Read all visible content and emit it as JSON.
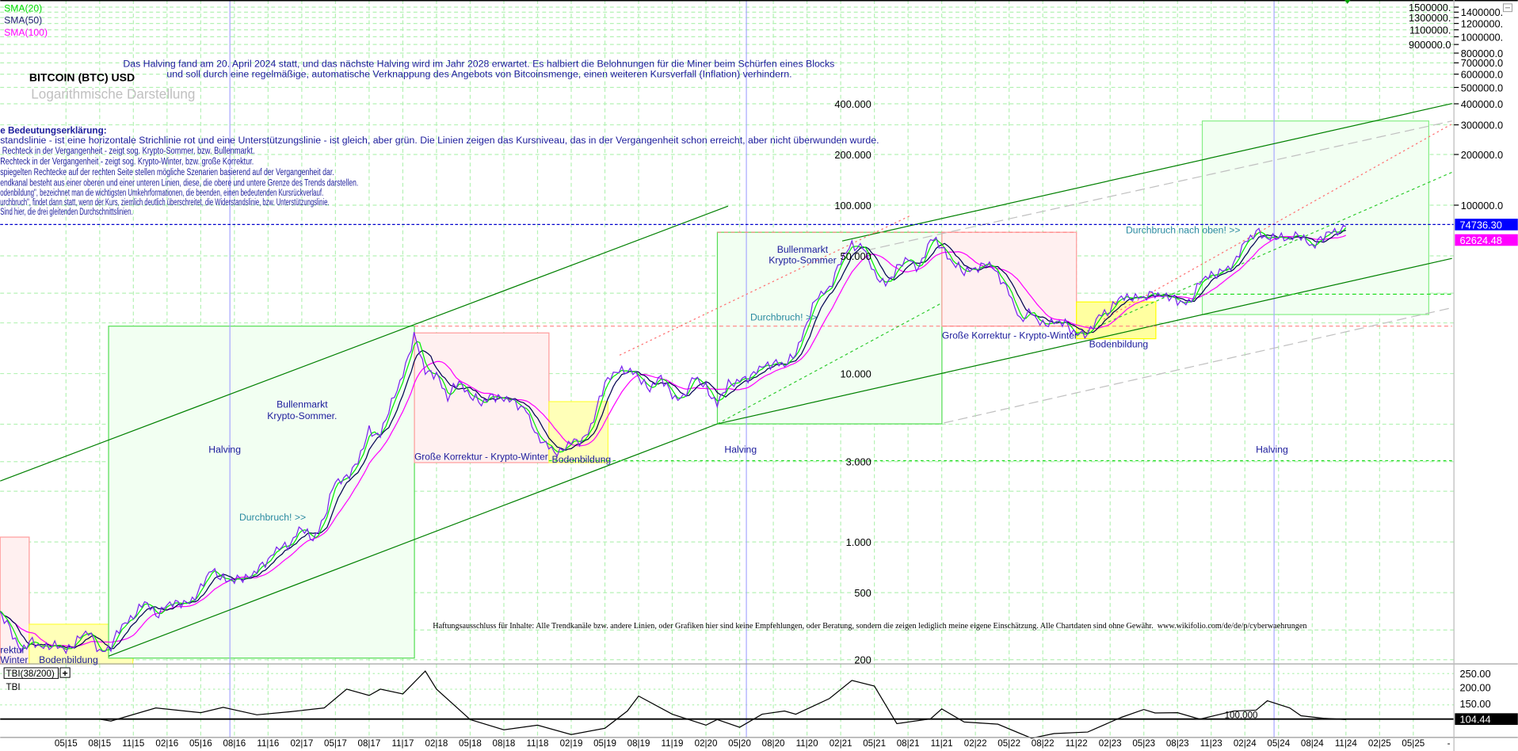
{
  "title": "BITCOIN (BTC) USD",
  "subtitle": "Logarithmische Darstellung",
  "legend": [
    {
      "label": "SMA(20)",
      "color": "#00dd00"
    },
    {
      "label": "SMA(50)",
      "color": "#202070"
    },
    {
      "label": "SMA(100)",
      "color": "#ff00ff"
    }
  ],
  "halving_note": [
    "Das Halving fand am 20. April 2024 statt, und das nächste Halving wird im Jahr 2028 erwartet. Es halbiert die Belohnungen für die Miner beim Schürfen eines Blocks",
    "und soll durch eine regelmäßige, automatische Verknappung des Angebots von Bitcoinsmenge, einen weiteren Kursverfall (Inflation) verhindern."
  ],
  "explanation": {
    "heading": "e Bedeutungserklärung:",
    "lines": [
      "standslinie - ist eine horizontale Strichlinie rot und eine Unterstützungslinie - ist gleich, aber grün. Die Linien zeigen das Kursniveau, das in der Vergangenheit schon erreicht, aber nicht überwunden wurde.",
      " Rechteck in der Vergangenheit - zeigt sog. Krypto-Sommer, bzw. Bullenmarkt.",
      "Rechteck in der Vergangenheit - zeigt sog. Krypto-Winter, bzw. große Korrektur.",
      "spiegelten Rechtecke auf der rechten Seite stellen mögliche Szenarien basierend auf der Vergangenheit dar.",
      "endkanal besteht aus einer oberen und einer unteren Linien, diese, die obere und untere Grenze des Trends darstellen.",
      "odenbildung\", bezeichnet man die wichtigsten Umkehrformationen, die beenden, einen bedeutenden Kursrückverlauf.",
      "urchbruch\", findet dann statt, wenn der Kurs, ziemlich deutlich überschreitet, die Widerstandslinie, bzw. Unterstützungslinie.",
      "Sind hier, die drei gleitenden Durchschnittslinien."
    ]
  },
  "annotations": {
    "halving": "Halving",
    "bull_1": "Bullenmarkt",
    "bull_2_dot": "Krypto-Sommer.",
    "bull_2": "Krypto-Sommer",
    "breakout": "Durchbruch! >>",
    "breakout_up": "Durchbruch nach oben! >>",
    "correction": "Große Korrektur - Krypto-Winter",
    "bottom": "Bodenbildung",
    "clip_1": "rektur",
    "clip_2": "Winter"
  },
  "disclaimer": "Haftungsausschluss für Inhalte: Alle Trendkanäle bzw. andere Linien, oder Grafiken hier sind keine Empfehlungen, oder Beratung, sondern die zeigen lediglich meine eigene Einschätzung. Alle Chartdaten sind ohne Gewähr.  www.wikifolio.com/de/de/p/cyberwaehrungen",
  "price_badges": {
    "last": "74736.30",
    "last_color": "#0000ff",
    "sma": "62624.48",
    "sma_color": "#ff00ff"
  },
  "indicator": {
    "name": "TBI(38/200)",
    "expand": "+",
    "label": "TBI",
    "level_label": "100.000",
    "value_badge": "104.44",
    "axis_labels": [
      "250.00",
      "200.00",
      "150.00"
    ]
  },
  "chart_data": {
    "type": "line",
    "yscale": "log",
    "price_axis_labels": [
      "1500000.",
      "1400000.",
      "1300000.",
      "1200000.",
      "1100000.",
      "1000000.",
      "900000.0",
      "800000.0",
      "700000.0",
      "600000.0",
      "500000.0",
      "400000.0",
      "300000.0",
      "200000.0",
      "100000.0"
    ],
    "inner_axis_labels": [
      "400.000",
      "200.000",
      "100.000",
      "50.000",
      "10.000",
      "3.000",
      "1.000",
      "500",
      "200"
    ],
    "x_ticks": [
      "05|15",
      "08|15",
      "11|15",
      "02|16",
      "05|16",
      "08|16",
      "11|16",
      "02|17",
      "05|17",
      "08|17",
      "11|17",
      "02|18",
      "05|18",
      "08|18",
      "11|18",
      "02|19",
      "05|19",
      "08|19",
      "11|19",
      "02|20",
      "05|20",
      "08|20",
      "11|20",
      "02|21",
      "05|21",
      "08|21",
      "11|21",
      "02|22",
      "05|22",
      "08|22",
      "11|22",
      "02|23",
      "05|23",
      "08|23",
      "11|23",
      "02|24",
      "05|24",
      "08|24",
      "11|24",
      "02|25",
      "05|25"
    ],
    "x_axis_end": "-",
    "price_start": "2014-11",
    "price_monthly": [
      380,
      320,
      220,
      255,
      245,
      235,
      230,
      265,
      285,
      230,
      235,
      315,
      375,
      430,
      370,
      435,
      415,
      450,
      530,
      670,
      625,
      575,
      610,
      700,
      745,
      965,
      970,
      1190,
      1070,
      1350,
      2300,
      2480,
      2875,
      4700,
      4340,
      6470,
      10200,
      16500,
      10200,
      10300,
      6900,
      9200,
      7500,
      6400,
      7700,
      7000,
      6600,
      6300,
      4000,
      3700,
      3450,
      3800,
      4100,
      5300,
      8600,
      10800,
      10100,
      9600,
      8300,
      9200,
      7550,
      7200,
      9350,
      8600,
      6400,
      8600,
      9450,
      9140,
      11350,
      11650,
      10800,
      13800,
      19700,
      29000,
      33100,
      45200,
      58900,
      57700,
      37300,
      35000,
      41500,
      47100,
      43800,
      61300,
      57000,
      46300,
      38500,
      43200,
      45500,
      37700,
      31800,
      19900,
      23300,
      20000,
      19400,
      20500,
      17200,
      16500,
      23100,
      23100,
      28500,
      29200,
      27200,
      30500,
      29200,
      26000,
      27000,
      34500,
      37700,
      42300,
      42600,
      61200,
      71300,
      60600,
      67500,
      62700,
      64600,
      59000,
      63300,
      70200,
      74736
    ],
    "moving_averages": [
      "SMA(20)",
      "SMA(50)",
      "SMA(100)"
    ],
    "tbi": [
      [
        "2015-08",
        104
      ],
      [
        "2015-09",
        98
      ],
      [
        "2016-01",
        140
      ],
      [
        "2016-05",
        125
      ],
      [
        "2016-07",
        142
      ],
      [
        "2016-10",
        118
      ],
      [
        "2017-01",
        128
      ],
      [
        "2017-04",
        140
      ],
      [
        "2017-06",
        200
      ],
      [
        "2017-08",
        180
      ],
      [
        "2017-09",
        200
      ],
      [
        "2017-11",
        185
      ],
      [
        "2018-01",
        258
      ],
      [
        "2018-02",
        200
      ],
      [
        "2018-05",
        103
      ],
      [
        "2018-08",
        70
      ],
      [
        "2018-11",
        85
      ],
      [
        "2019-02",
        55
      ],
      [
        "2019-05",
        75
      ],
      [
        "2019-07",
        130
      ],
      [
        "2019-08",
        178
      ],
      [
        "2019-11",
        120
      ],
      [
        "2020-02",
        85
      ],
      [
        "2020-03",
        103
      ],
      [
        "2020-05",
        78
      ],
      [
        "2020-07",
        120
      ],
      [
        "2020-09",
        130
      ],
      [
        "2020-10",
        120
      ],
      [
        "2021-01",
        170
      ],
      [
        "2021-03",
        228
      ],
      [
        "2021-05",
        210
      ],
      [
        "2021-07",
        90
      ],
      [
        "2021-10",
        105
      ],
      [
        "2021-11",
        137
      ],
      [
        "2022-01",
        95
      ],
      [
        "2022-04",
        88
      ],
      [
        "2022-07",
        43
      ],
      [
        "2022-09",
        58
      ],
      [
        "2022-12",
        63
      ],
      [
        "2023-03",
        110
      ],
      [
        "2023-05",
        135
      ],
      [
        "2023-06",
        124
      ],
      [
        "2023-08",
        125
      ],
      [
        "2023-10",
        104
      ],
      [
        "2024-01",
        130
      ],
      [
        "2024-03",
        133
      ],
      [
        "2024-04",
        163
      ],
      [
        "2024-06",
        140
      ],
      [
        "2024-07",
        115
      ],
      [
        "2024-09",
        107
      ],
      [
        "2024-11",
        103
      ]
    ],
    "halvings": [
      "2016-07",
      "2020-05",
      "2024-04"
    ],
    "levels": {
      "resistance_last": 74736.3,
      "sma_last": 62624.48,
      "tbi_baseline": 104.44
    }
  }
}
